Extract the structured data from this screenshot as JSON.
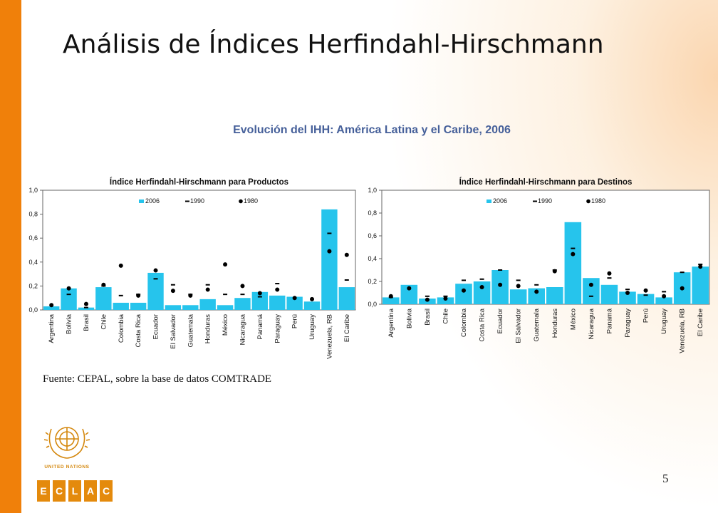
{
  "slide": {
    "title": "Análisis de Índices Herfindahl-Hirschmann",
    "subtitle": "Evolución del IHH: América Latina y el Caribe, 2006",
    "source": "Fuente: CEPAL, sobre la base de datos COMTRADE",
    "page_number": "5",
    "logo_text": "United Nations",
    "eclac_letters": [
      "E",
      "C",
      "L",
      "A",
      "C"
    ]
  },
  "colors": {
    "bar": "#26c4ec",
    "accent_orange": "#f0800a",
    "subtitle_blue": "#46609a"
  },
  "chart_data": [
    {
      "type": "bar",
      "title": "Índice Herfindahl-Hirschmann  para Productos",
      "categories": [
        "Argentina",
        "Bolivia",
        "Brasil",
        "Chile",
        "Colombia",
        "Costa Rica",
        "Ecuador",
        "El Salvador",
        "Guatemala",
        "Honduras",
        "México",
        "Nicaragua",
        "Panamá",
        "Paraguay",
        "Perú",
        "Uruguay",
        "Venezuela, RB",
        "El Caribe"
      ],
      "series": [
        {
          "name": "2006",
          "marker": "bar",
          "values": [
            0.03,
            0.18,
            0.02,
            0.19,
            0.06,
            0.06,
            0.31,
            0.04,
            0.04,
            0.09,
            0.04,
            0.1,
            0.15,
            0.12,
            0.11,
            0.07,
            0.84,
            0.19
          ]
        },
        {
          "name": "1990",
          "marker": "dash",
          "values": [
            null,
            0.13,
            0.02,
            0.2,
            0.12,
            0.13,
            0.26,
            0.21,
            0.13,
            0.21,
            0.13,
            0.13,
            0.11,
            0.22,
            null,
            null,
            0.64,
            0.25
          ]
        },
        {
          "name": "1980",
          "marker": "dot",
          "values": [
            0.04,
            0.18,
            0.05,
            0.21,
            0.37,
            0.12,
            0.33,
            0.16,
            0.12,
            0.17,
            0.38,
            0.2,
            0.14,
            0.17,
            0.1,
            0.09,
            0.49,
            0.46
          ]
        }
      ],
      "yticks": [
        "0,0",
        "0,2",
        "0,4",
        "0,6",
        "0,8",
        "1,0"
      ],
      "ylim": [
        0,
        1
      ],
      "grid": false,
      "legend": "top-center"
    },
    {
      "type": "bar",
      "title": "Índice Herfindahl-Hirschmann  para Destinos",
      "categories": [
        "Argentina",
        "Bolivia",
        "Brasil",
        "Chile",
        "Colombia",
        "Costa Rica",
        "Ecuador",
        "El Salvador",
        "Guatemala",
        "Honduras",
        "México",
        "Nicaragua",
        "Panamá",
        "Paraguay",
        "Perú",
        "Uruguay",
        "Venezuela, RB",
        "El Caribe"
      ],
      "series": [
        {
          "name": "2006",
          "marker": "bar",
          "values": [
            0.06,
            0.17,
            0.05,
            0.06,
            0.18,
            0.2,
            0.3,
            0.13,
            0.14,
            0.15,
            0.72,
            0.23,
            0.17,
            0.11,
            0.09,
            0.06,
            0.28,
            0.33
          ]
        },
        {
          "name": "1990",
          "marker": "dash",
          "values": [
            0.06,
            null,
            0.07,
            0.07,
            0.21,
            0.22,
            0.3,
            0.21,
            0.17,
            0.3,
            0.49,
            0.07,
            0.23,
            0.13,
            0.08,
            0.11,
            0.28,
            0.35
          ]
        },
        {
          "name": "1980",
          "marker": "dot",
          "values": [
            0.07,
            0.14,
            0.04,
            0.05,
            0.12,
            0.15,
            0.17,
            0.16,
            0.11,
            0.29,
            0.44,
            0.17,
            0.27,
            0.1,
            0.12,
            0.07,
            0.14,
            0.33
          ]
        }
      ],
      "yticks": [
        "0,0",
        "0,2",
        "0,4",
        "0,6",
        "0,8",
        "1,0"
      ],
      "ylim": [
        0,
        1
      ],
      "grid": false,
      "legend": "top-center"
    }
  ]
}
